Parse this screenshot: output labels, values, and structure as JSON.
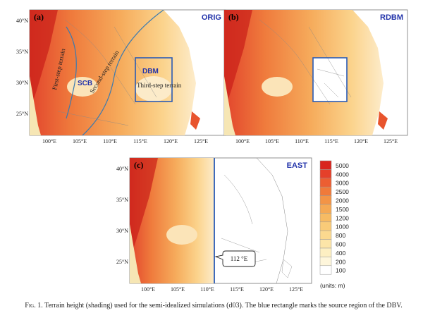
{
  "figure": {
    "panels": [
      {
        "id": "a",
        "label": "(a)",
        "experiment": "ORIG",
        "annotations": {
          "first_step": "First-step terrain",
          "second_step": "Second-step terrain",
          "third_step": "Third-step terrain",
          "scb": "SCB",
          "dbm": "DBM"
        },
        "blue_box": true,
        "masked_east_of": null
      },
      {
        "id": "b",
        "label": "(b)",
        "experiment": "RDBM",
        "blue_box": true,
        "masked_east_of": null
      },
      {
        "id": "c",
        "label": "(c)",
        "experiment": "EAST",
        "blue_box": false,
        "masked_east_of": 112,
        "callout": "112 °E"
      }
    ],
    "lon_ticks": [
      "100°E",
      "105°E",
      "110°E",
      "115°E",
      "120°E",
      "125°E"
    ],
    "lat_ticks": [
      "40°N",
      "35°N",
      "30°N",
      "25°N"
    ],
    "legend": {
      "levels": [
        "5000",
        "4000",
        "3000",
        "2500",
        "2000",
        "1500",
        "1200",
        "1000",
        "800",
        "600",
        "400",
        "200",
        "100"
      ],
      "colors": [
        "#d8241e",
        "#e5402a",
        "#ec5e32",
        "#f07a3a",
        "#f39446",
        "#f5a954",
        "#f7bb63",
        "#f9cb78",
        "#fbd98f",
        "#fce5a8",
        "#fdefc2",
        "#fef6db",
        "#ffffff"
      ],
      "units": "(units: m)"
    },
    "colors": {
      "box_blue": "#2a5bb5",
      "terrain_line": "#3a7ab0",
      "sea": "#ffffff",
      "high": "#d8241e"
    },
    "caption": {
      "fig_label": "Fig. 1.",
      "text": "Terrain height (shading) used for the semi-idealized simulations (d03). The blue rectangle marks the source region of the DBV."
    }
  }
}
